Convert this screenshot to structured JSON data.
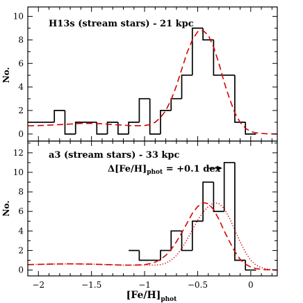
{
  "chart_data": [
    {
      "type": "histogram",
      "annotation": "H13s (stream stars) - 21 kpc",
      "ylabel": "No.",
      "xlim": [
        -2.1,
        0.25
      ],
      "ylim": [
        -0.6,
        10.8
      ],
      "yticks": [
        0,
        2,
        4,
        6,
        8,
        10
      ],
      "bins": [
        {
          "x0": -2.1,
          "x1": -2.05,
          "count": 1
        },
        {
          "x0": -2.05,
          "x1": -1.95,
          "count": 1
        },
        {
          "x0": -1.95,
          "x1": -1.85,
          "count": 1
        },
        {
          "x0": -1.85,
          "x1": -1.75,
          "count": 2
        },
        {
          "x0": -1.75,
          "x1": -1.65,
          "count": 0
        },
        {
          "x0": -1.65,
          "x1": -1.55,
          "count": 1
        },
        {
          "x0": -1.55,
          "x1": -1.45,
          "count": 1
        },
        {
          "x0": -1.45,
          "x1": -1.35,
          "count": 0
        },
        {
          "x0": -1.35,
          "x1": -1.25,
          "count": 1
        },
        {
          "x0": -1.25,
          "x1": -1.15,
          "count": 0
        },
        {
          "x0": -1.15,
          "x1": -1.05,
          "count": 1
        },
        {
          "x0": -1.05,
          "x1": -0.95,
          "count": 3
        },
        {
          "x0": -0.95,
          "x1": -0.85,
          "count": 0
        },
        {
          "x0": -0.85,
          "x1": -0.75,
          "count": 2
        },
        {
          "x0": -0.75,
          "x1": -0.65,
          "count": 3
        },
        {
          "x0": -0.65,
          "x1": -0.55,
          "count": 5
        },
        {
          "x0": -0.55,
          "x1": -0.45,
          "count": 9
        },
        {
          "x0": -0.45,
          "x1": -0.35,
          "count": 8
        },
        {
          "x0": -0.35,
          "x1": -0.25,
          "count": 5
        },
        {
          "x0": -0.25,
          "x1": -0.15,
          "count": 5
        },
        {
          "x0": -0.15,
          "x1": -0.05,
          "count": 1
        },
        {
          "x0": -0.05,
          "x1": 0.05,
          "count": 0
        }
      ],
      "curves": [
        {
          "style": "dashed",
          "color": "#d40000",
          "x": [
            -2.1,
            -2.0,
            -1.9,
            -1.8,
            -1.7,
            -1.6,
            -1.5,
            -1.4,
            -1.3,
            -1.2,
            -1.1,
            -1.0,
            -0.95,
            -0.9,
            -0.85,
            -0.8,
            -0.75,
            -0.7,
            -0.65,
            -0.6,
            -0.55,
            -0.5,
            -0.45,
            -0.4,
            -0.35,
            -0.3,
            -0.25,
            -0.2,
            -0.15,
            -0.1,
            -0.05,
            0.0,
            0.05,
            0.1,
            0.15,
            0.2,
            0.25
          ],
          "y": [
            0.7,
            0.72,
            0.75,
            0.8,
            0.85,
            0.9,
            0.9,
            0.87,
            0.8,
            0.75,
            0.7,
            0.72,
            0.8,
            1.0,
            1.4,
            2.0,
            2.9,
            4.1,
            5.5,
            6.9,
            8.0,
            8.7,
            8.8,
            8.4,
            7.4,
            6.0,
            4.4,
            3.0,
            1.8,
            1.0,
            0.5,
            0.2,
            0.1,
            0.05,
            0.02,
            0.01,
            0.0
          ]
        }
      ]
    },
    {
      "type": "histogram",
      "annotation": "a3 (stream stars) - 33 kpc",
      "shift_label_main": "Δ[Fe/H]",
      "shift_label_sub": "phot",
      "shift_label_value": " = +0.1 dex",
      "ylabel": "No.",
      "xlabel_main": "[Fe/H]",
      "xlabel_sub": "phot",
      "xlim": [
        -2.1,
        0.25
      ],
      "ylim": [
        -0.6,
        13.2
      ],
      "yticks": [
        0,
        2,
        4,
        6,
        8,
        10,
        12
      ],
      "xticks": [
        -2,
        -1.5,
        -1,
        -0.5,
        0
      ],
      "xticklabels": [
        "−2",
        "−1.5",
        "−1",
        "−0.5",
        "0"
      ],
      "bins": [
        {
          "x0": -1.15,
          "x1": -1.05,
          "count": 2
        },
        {
          "x0": -1.05,
          "x1": -0.95,
          "count": 1
        },
        {
          "x0": -0.95,
          "x1": -0.85,
          "count": 1
        },
        {
          "x0": -0.85,
          "x1": -0.75,
          "count": 2
        },
        {
          "x0": -0.75,
          "x1": -0.65,
          "count": 4
        },
        {
          "x0": -0.65,
          "x1": -0.55,
          "count": 2
        },
        {
          "x0": -0.55,
          "x1": -0.45,
          "count": 5
        },
        {
          "x0": -0.45,
          "x1": -0.35,
          "count": 9
        },
        {
          "x0": -0.35,
          "x1": -0.25,
          "count": 6
        },
        {
          "x0": -0.25,
          "x1": -0.15,
          "count": 11
        },
        {
          "x0": -0.15,
          "x1": -0.05,
          "count": 1
        },
        {
          "x0": -0.05,
          "x1": 0.05,
          "count": 0
        }
      ],
      "curves": [
        {
          "style": "dashed",
          "color": "#d40000",
          "x": [
            -2.1,
            -2.0,
            -1.9,
            -1.8,
            -1.7,
            -1.6,
            -1.5,
            -1.4,
            -1.3,
            -1.2,
            -1.1,
            -1.0,
            -0.95,
            -0.9,
            -0.85,
            -0.8,
            -0.75,
            -0.7,
            -0.65,
            -0.6,
            -0.55,
            -0.5,
            -0.45,
            -0.4,
            -0.35,
            -0.3,
            -0.25,
            -0.2,
            -0.15,
            -0.1,
            -0.05,
            0.0,
            0.05,
            0.1,
            0.15,
            0.2,
            0.25
          ],
          "y": [
            0.55,
            0.58,
            0.6,
            0.62,
            0.63,
            0.62,
            0.6,
            0.57,
            0.54,
            0.5,
            0.5,
            0.55,
            0.65,
            0.8,
            1.1,
            1.5,
            2.1,
            2.9,
            3.8,
            4.8,
            5.8,
            6.5,
            6.9,
            6.8,
            6.2,
            5.2,
            4.0,
            2.9,
            1.9,
            1.1,
            0.6,
            0.3,
            0.15,
            0.07,
            0.03,
            0.01,
            0.0
          ]
        },
        {
          "style": "dotted",
          "color": "#d40000",
          "x": [
            -2.1,
            -2.0,
            -1.9,
            -1.8,
            -1.7,
            -1.6,
            -1.5,
            -1.4,
            -1.3,
            -1.2,
            -1.1,
            -1.0,
            -0.9,
            -0.85,
            -0.8,
            -0.75,
            -0.7,
            -0.65,
            -0.6,
            -0.55,
            -0.5,
            -0.45,
            -0.4,
            -0.35,
            -0.3,
            -0.25,
            -0.2,
            -0.15,
            -0.1,
            -0.05,
            0.0,
            0.05,
            0.1,
            0.15,
            0.2,
            0.25
          ],
          "y": [
            0.55,
            0.58,
            0.6,
            0.62,
            0.63,
            0.62,
            0.6,
            0.57,
            0.54,
            0.5,
            0.5,
            0.5,
            0.5,
            0.55,
            0.7,
            1.0,
            1.5,
            2.2,
            3.1,
            4.1,
            5.1,
            5.9,
            6.5,
            6.9,
            6.8,
            6.3,
            5.3,
            4.1,
            2.9,
            1.8,
            1.0,
            0.5,
            0.25,
            0.1,
            0.05,
            0.0
          ]
        }
      ]
    }
  ]
}
